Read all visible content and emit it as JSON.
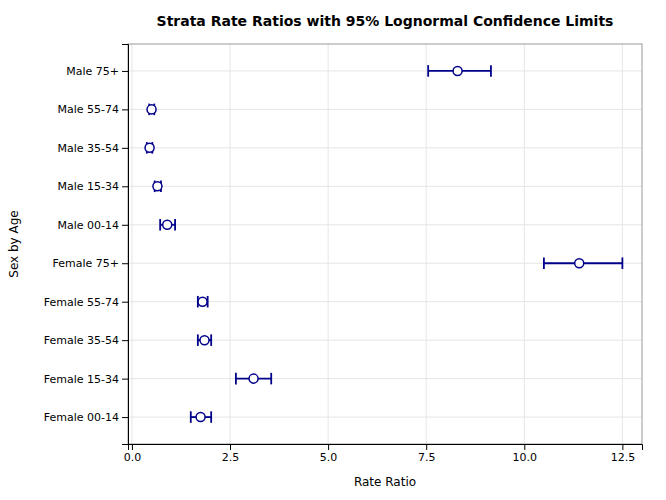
{
  "chart_data": {
    "type": "dot",
    "title": "Strata Rate Ratios with 95% Lognormal Confidence Limits",
    "x_label": "Rate Ratio",
    "y_label": "Sex by Age",
    "categories": [
      "Male 75+",
      "Male 55-74",
      "Male 35-54",
      "Male 15-34",
      "Male 00-14",
      "Female 75+",
      "Female 55-74",
      "Female 35-54",
      "Female 15-34",
      "Female 00-14"
    ],
    "values": [
      8.3,
      0.5,
      0.45,
      0.65,
      0.9,
      11.4,
      1.8,
      1.85,
      3.1,
      1.75
    ],
    "lower": [
      7.55,
      0.44,
      0.38,
      0.58,
      0.72,
      10.5,
      1.68,
      1.68,
      2.65,
      1.5
    ],
    "upper": [
      9.15,
      0.57,
      0.52,
      0.74,
      1.1,
      12.5,
      1.93,
      2.02,
      3.55,
      2.02
    ],
    "orientation": "horizontal",
    "color": "#00008B",
    "marker": "circle",
    "xlim": [
      -0.1,
      13.0
    ],
    "xticks": [
      {
        "value": 0.0,
        "label": "0.0"
      },
      2.5,
      {
        "value": 5.0,
        "label": "5.0"
      },
      7.5,
      {
        "value": 10.0,
        "label": "10.0"
      },
      12.5
    ],
    "grid": true
  }
}
